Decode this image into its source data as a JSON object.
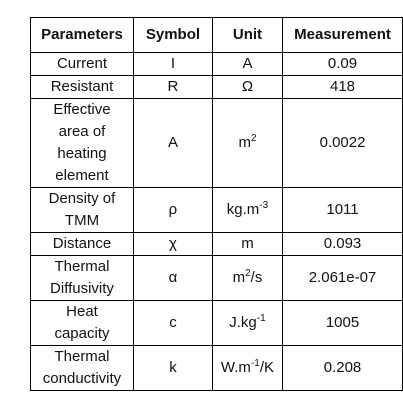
{
  "table": {
    "header": [
      "Parameters",
      "Symbol",
      "Unit",
      "Measurement"
    ],
    "rows": [
      [
        "Current",
        "I",
        [
          "A"
        ],
        "0.09"
      ],
      [
        "Resistant",
        "R",
        [
          "Ω"
        ],
        "418"
      ],
      [
        "Effective area of heating element",
        "A",
        [
          "m",
          {
            "sup": "2"
          }
        ],
        "0.0022"
      ],
      [
        "Density of TMM",
        "ρ",
        [
          "kg.m",
          {
            "sup": "-3"
          }
        ],
        "1011"
      ],
      [
        "Distance",
        "χ",
        [
          "m"
        ],
        "0.093"
      ],
      [
        "Thermal Diffusivity",
        "α",
        [
          "m",
          {
            "sup": "2"
          },
          "/s"
        ],
        "2.061e-07"
      ],
      [
        "Heat capacity",
        "c",
        [
          "J.kg",
          {
            "sup": "-1"
          }
        ],
        "1005"
      ],
      [
        "Thermal conductivity",
        "k",
        [
          "W.m",
          {
            "sup": "-1"
          },
          "/K"
        ],
        "0.208"
      ]
    ]
  }
}
